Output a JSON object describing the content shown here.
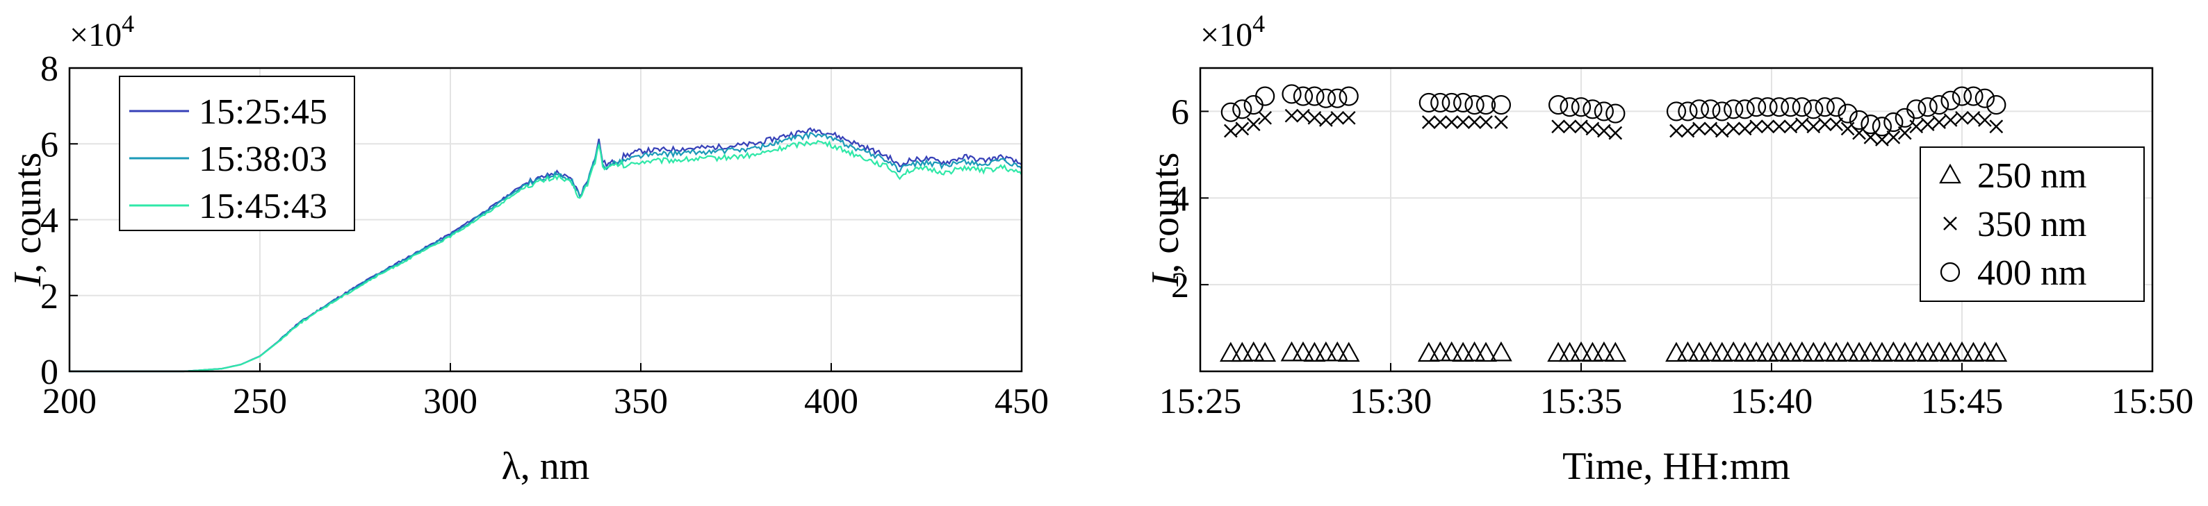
{
  "chart_data": [
    {
      "type": "line",
      "xlabel": "λ, nm",
      "ylabel_italic": "I",
      "ylabel_rest": ", counts",
      "y_multiplier_base": "×10",
      "y_multiplier_exp": "4",
      "xlim": [
        200,
        450
      ],
      "ylim": [
        0,
        80000
      ],
      "xticks": [
        200,
        250,
        300,
        350,
        400,
        450
      ],
      "yticks": [
        0,
        20000,
        40000,
        60000,
        80000
      ],
      "ytick_labels": [
        "0",
        "2",
        "4",
        "6",
        "8"
      ],
      "grid": true,
      "legend_position": "top-left",
      "spectrum_shape": {
        "x": [
          200,
          230,
          240,
          245,
          250,
          255,
          260,
          265,
          270,
          280,
          290,
          300,
          310,
          320,
          328,
          332,
          334,
          336,
          338,
          339,
          340,
          341,
          342,
          345,
          350,
          360,
          370,
          380,
          390,
          396,
          400,
          405,
          410,
          415,
          418,
          420,
          425,
          430,
          435,
          440,
          445,
          450
        ],
        "y": [
          0,
          0,
          700,
          1800,
          4000,
          8000,
          12500,
          15800,
          19000,
          25000,
          30500,
          36000,
          42500,
          49500,
          52000,
          50000,
          46000,
          50000,
          56000,
          60500,
          55000,
          54000,
          54500,
          55500,
          57000,
          57500,
          58000,
          58800,
          61500,
          62500,
          61500,
          59500,
          57500,
          55500,
          53000,
          54500,
          55000,
          54000,
          55500,
          54500,
          55500,
          53500
        ]
      },
      "series": [
        {
          "name": "15:25:45",
          "color": "#3640b8",
          "scale": 1.02
        },
        {
          "name": "15:38:03",
          "color": "#1b9ab8",
          "scale": 1.0
        },
        {
          "name": "15:45:43",
          "color": "#2fe8a8",
          "scale": 0.97
        }
      ]
    },
    {
      "type": "scatter",
      "xlabel": "Time, HH:mm",
      "ylabel_italic": "I",
      "ylabel_rest": ", counts",
      "y_multiplier_base": "×10",
      "y_multiplier_exp": "4",
      "xlim": [
        25.0,
        50.0
      ],
      "ylim": [
        0,
        70000
      ],
      "xticks": [
        25,
        30,
        35,
        40,
        45,
        50
      ],
      "xtick_labels": [
        "15:25",
        "15:30",
        "15:35",
        "15:40",
        "15:45",
        "15:50"
      ],
      "yticks": [
        20000,
        40000,
        60000
      ],
      "ytick_labels": [
        "2",
        "4",
        "6"
      ],
      "grid": true,
      "legend_position": "bottom-right",
      "time_points": [
        25.8,
        26.1,
        26.4,
        26.7,
        27.4,
        27.7,
        28.0,
        28.3,
        28.6,
        28.9,
        31.0,
        31.3,
        31.6,
        31.9,
        32.2,
        32.5,
        32.9,
        34.4,
        34.7,
        35.0,
        35.3,
        35.6,
        35.9,
        37.5,
        37.8,
        38.1,
        38.4,
        38.7,
        39.0,
        39.3,
        39.6,
        39.9,
        40.2,
        40.5,
        40.8,
        41.1,
        41.4,
        41.7,
        42.0,
        42.3,
        42.6,
        42.9,
        43.2,
        43.5,
        43.8,
        44.1,
        44.4,
        44.7,
        45.0,
        45.3,
        45.6,
        45.9
      ],
      "series": [
        {
          "name": "250 nm",
          "marker": "triangle",
          "values": [
            4200,
            4200,
            4300,
            4200,
            4300,
            4300,
            4200,
            4300,
            4300,
            4200,
            4200,
            4300,
            4300,
            4200,
            4300,
            4200,
            4300,
            4200,
            4200,
            4300,
            4200,
            4300,
            4200,
            4200,
            4300,
            4200,
            4300,
            4200,
            4300,
            4200,
            4300,
            4200,
            4300,
            4200,
            4300,
            4200,
            4300,
            4200,
            4300,
            4200,
            4300,
            4200,
            4300,
            4200,
            4300,
            4200,
            4300,
            4200,
            4300,
            4200,
            4300,
            4200
          ]
        },
        {
          "name": "350 nm",
          "marker": "x",
          "values": [
            55500,
            56000,
            57000,
            58500,
            59000,
            59000,
            58500,
            58000,
            58500,
            58500,
            57500,
            57500,
            57500,
            57500,
            57500,
            57500,
            57500,
            56500,
            56500,
            56500,
            56000,
            55500,
            55000,
            55500,
            55500,
            56000,
            56000,
            55500,
            56000,
            56000,
            56500,
            56500,
            56500,
            56500,
            57000,
            56500,
            57000,
            57000,
            56000,
            55000,
            54000,
            53500,
            54000,
            55000,
            56500,
            57000,
            57500,
            58000,
            58500,
            58500,
            58000,
            56500
          ]
        },
        {
          "name": "400 nm",
          "marker": "circle",
          "values": [
            59800,
            60500,
            61500,
            63500,
            64000,
            63500,
            63500,
            63000,
            63000,
            63500,
            62000,
            62000,
            62000,
            62000,
            61500,
            61500,
            61500,
            61500,
            61000,
            61000,
            60500,
            60000,
            59500,
            60000,
            60000,
            60500,
            60500,
            60000,
            60500,
            60500,
            61000,
            61000,
            61000,
            61000,
            61000,
            60500,
            61000,
            61000,
            59500,
            58000,
            57000,
            56500,
            57500,
            58500,
            60500,
            61000,
            61500,
            62500,
            63500,
            63500,
            63000,
            61500
          ]
        }
      ]
    }
  ]
}
